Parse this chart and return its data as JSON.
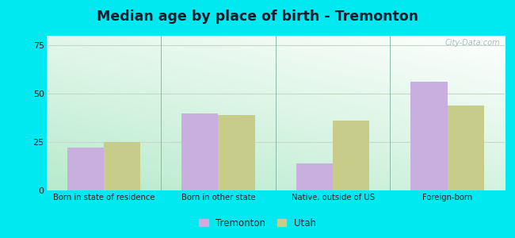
{
  "title": "Median age by place of birth - Tremonton",
  "categories": [
    "Born in state of residence",
    "Born in other state",
    "Native, outside of US",
    "Foreign-born"
  ],
  "tremonton_values": [
    22,
    40,
    14,
    56
  ],
  "utah_values": [
    25,
    39,
    36,
    44
  ],
  "tremonton_color": "#c9aee0",
  "utah_color": "#c8cc8a",
  "ylim": [
    0,
    80
  ],
  "yticks": [
    0,
    25,
    50,
    75
  ],
  "background_outer": "#00e8f0",
  "bar_width": 0.32,
  "legend_tremonton": "Tremonton",
  "legend_utah": "Utah",
  "watermark": "City-Data.com",
  "title_color": "#1a1a2e",
  "grid_color": "#c8d8c8",
  "separator_color": "#88bbaa"
}
